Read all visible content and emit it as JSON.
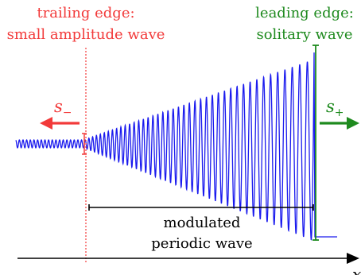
{
  "labels": {
    "trailing_line1": "trailing edge:",
    "trailing_line2": "small amplitude wave",
    "leading_line1": "leading edge:",
    "leading_line2": "solitary wave",
    "modulated_line1": "modulated",
    "modulated_line2": "periodic wave",
    "s_minus_base": "s",
    "s_minus_sub": "−",
    "s_plus_base": "s",
    "s_plus_sub": "+",
    "x_axis": "x"
  },
  "colors": {
    "trailing": "#f23a3a",
    "leading": "#1e8a1e",
    "wave": "#1a1aee",
    "axis": "#000000"
  }
}
